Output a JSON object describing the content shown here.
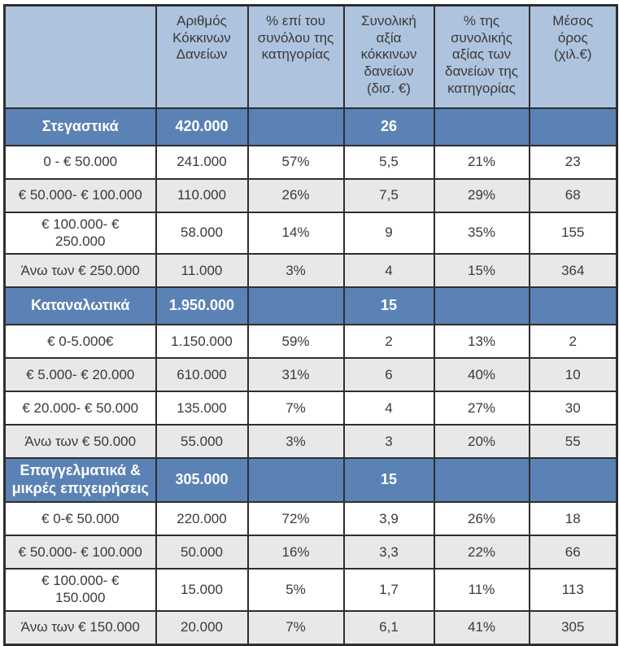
{
  "colors": {
    "header_bg": "#aec3de",
    "section_bg": "#5b82b5",
    "alt_row_bg": "#e8e8e8",
    "border": "#2e2e2e",
    "section_text": "#ffffff",
    "body_text": "#3a3a3a"
  },
  "chart_data": {
    "type": "table",
    "title": "",
    "columns": [
      "",
      "Αριθμός\nΚόκκινων\nΔανείων",
      "% επί του\nσυνόλου της\nκατηγορίας",
      "Συνολική\nαξία\nκόκκινων\nδανείων\n(δισ. €)",
      "% της\nσυνολικής\nαξίας των\nδανείων της\nκατηγορίας",
      "Μέσος\nόρος\n(χιλ.€)"
    ],
    "sections": [
      {
        "label": "Στεγαστικά",
        "count": "420.000",
        "pct_count": "",
        "value": "26",
        "pct_value": "",
        "avg": "",
        "rows": [
          {
            "label": "0 - € 50.000",
            "count": "241.000",
            "pct_count": "57%",
            "value": "5,5",
            "pct_value": "21%",
            "avg": "23"
          },
          {
            "label": "€ 50.000- € 100.000",
            "count": "110.000",
            "pct_count": "26%",
            "value": "7,5",
            "pct_value": "29%",
            "avg": "68"
          },
          {
            "label": "€ 100.000- €\n250.000",
            "count": "58.000",
            "pct_count": "14%",
            "value": "9",
            "pct_value": "35%",
            "avg": "155"
          },
          {
            "label": "Άνω των € 250.000",
            "count": "11.000",
            "pct_count": "3%",
            "value": "4",
            "pct_value": "15%",
            "avg": "364"
          }
        ]
      },
      {
        "label": "Καταναλωτικά",
        "count": "1.950.000",
        "pct_count": "",
        "value": "15",
        "pct_value": "",
        "avg": "",
        "rows": [
          {
            "label": "€ 0-5.000€",
            "count": "1.150.000",
            "pct_count": "59%",
            "value": "2",
            "pct_value": "13%",
            "avg": "2"
          },
          {
            "label": "€ 5.000- € 20.000",
            "count": "610.000",
            "pct_count": "31%",
            "value": "6",
            "pct_value": "40%",
            "avg": "10"
          },
          {
            "label": "€ 20.000- € 50.000",
            "count": "135.000",
            "pct_count": "7%",
            "value": "4",
            "pct_value": "27%",
            "avg": "30"
          },
          {
            "label": "Άνω των € 50.000",
            "count": "55.000",
            "pct_count": "3%",
            "value": "3",
            "pct_value": "20%",
            "avg": "55"
          }
        ]
      },
      {
        "label": "Επαγγελματικά &\nμικρές επιχειρήσεις",
        "count": "305.000",
        "pct_count": "",
        "value": "15",
        "pct_value": "",
        "avg": "",
        "rows": [
          {
            "label": "€ 0-€ 50.000",
            "count": "220.000",
            "pct_count": "72%",
            "value": "3,9",
            "pct_value": "26%",
            "avg": "18"
          },
          {
            "label": "€ 50.000- € 100.000",
            "count": "50.000",
            "pct_count": "16%",
            "value": "3,3",
            "pct_value": "22%",
            "avg": "66"
          },
          {
            "label": "€ 100.000- €\n150.000",
            "count": "15.000",
            "pct_count": "5%",
            "value": "1,7",
            "pct_value": "11%",
            "avg": "113"
          },
          {
            "label": "Άνω των € 150.000",
            "count": "20.000",
            "pct_count": "7%",
            "value": "6,1",
            "pct_value": "41%",
            "avg": "305"
          }
        ]
      }
    ]
  }
}
